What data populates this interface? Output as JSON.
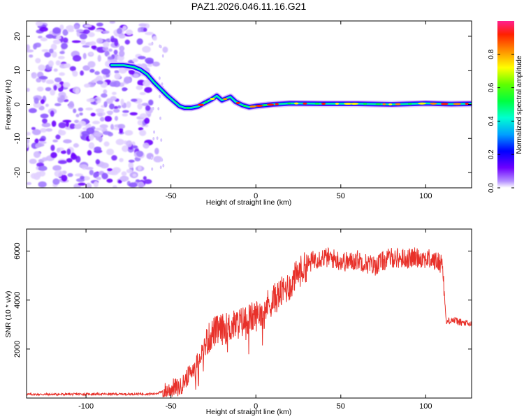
{
  "figure_title": "PAZ1.2026.046.11.16.G21",
  "chart_data": [
    {
      "type": "heatmap",
      "title": "PAZ1.2026.046.11.16.G21",
      "xlabel": "Height of straight line (km)",
      "ylabel": "Frequency (Hz)",
      "xlim": [
        -135,
        127
      ],
      "ylim": [
        -24.5,
        24.5
      ],
      "xticks": [
        -100,
        -50,
        0,
        50,
        100
      ],
      "yticks": [
        -20,
        -10,
        0,
        10,
        20
      ],
      "colorbar": {
        "label": "Normalized spectral amplitude",
        "range": [
          0,
          1
        ],
        "ticks": [
          "0.0",
          "0.2",
          "0.4",
          "0.6",
          "0.8"
        ],
        "tick_values": [
          0,
          0.2,
          0.4,
          0.6,
          0.8
        ]
      },
      "noise_region": {
        "x_range": [
          -135,
          -62
        ],
        "y_range": [
          -24.5,
          24.5
        ]
      },
      "ridge": {
        "x": [
          -85,
          -78,
          -72,
          -68,
          -64,
          -60,
          -56,
          -52,
          -48,
          -45,
          -42,
          -38,
          -34,
          -30,
          -26,
          -23,
          -20,
          -17,
          -15,
          -12,
          -8,
          -4,
          0,
          10,
          20,
          40,
          60,
          80,
          100,
          115,
          127
        ],
        "frequency": [
          11.5,
          11.5,
          11,
          10.2,
          8.8,
          6.5,
          4.5,
          2.5,
          0.8,
          -0.5,
          -1,
          -1,
          -0.6,
          0.5,
          1.5,
          2.5,
          1.2,
          1.8,
          2.2,
          0.8,
          -0.2,
          -0.8,
          -0.5,
          0,
          0.3,
          0.2,
          0.2,
          0,
          0.3,
          0.1,
          0.2
        ]
      }
    },
    {
      "type": "line",
      "xlabel": "Height of straight line (km)",
      "ylabel": "SNR (10 * v/v)",
      "xlim": [
        -135,
        127
      ],
      "ylim": [
        0,
        6900
      ],
      "xticks": [
        -100,
        -50,
        0,
        50,
        100
      ],
      "yticks": [
        2000,
        4000,
        6000
      ],
      "series": [
        {
          "name": "SNR",
          "color": "#e8312a",
          "x": [
            -135,
            -120,
            -100,
            -80,
            -60,
            -52,
            -48,
            -45,
            -40,
            -35,
            -30,
            -25,
            -20,
            -15,
            -10,
            -5,
            0,
            5,
            10,
            15,
            20,
            25,
            30,
            35,
            40,
            45,
            50,
            55,
            60,
            65,
            70,
            75,
            80,
            85,
            90,
            95,
            100,
            105,
            110,
            111,
            112,
            115,
            120,
            127
          ],
          "values": [
            150,
            150,
            160,
            160,
            170,
            300,
            450,
            400,
            900,
            1400,
            2200,
            2700,
            2800,
            2900,
            3050,
            3200,
            3350,
            3700,
            4000,
            4300,
            4600,
            5100,
            5400,
            5700,
            5750,
            5700,
            5600,
            5550,
            5650,
            5500,
            5400,
            5600,
            5750,
            5700,
            5700,
            5750,
            5700,
            5600,
            5500,
            4200,
            3100,
            3200,
            3100,
            3000
          ]
        }
      ]
    }
  ]
}
